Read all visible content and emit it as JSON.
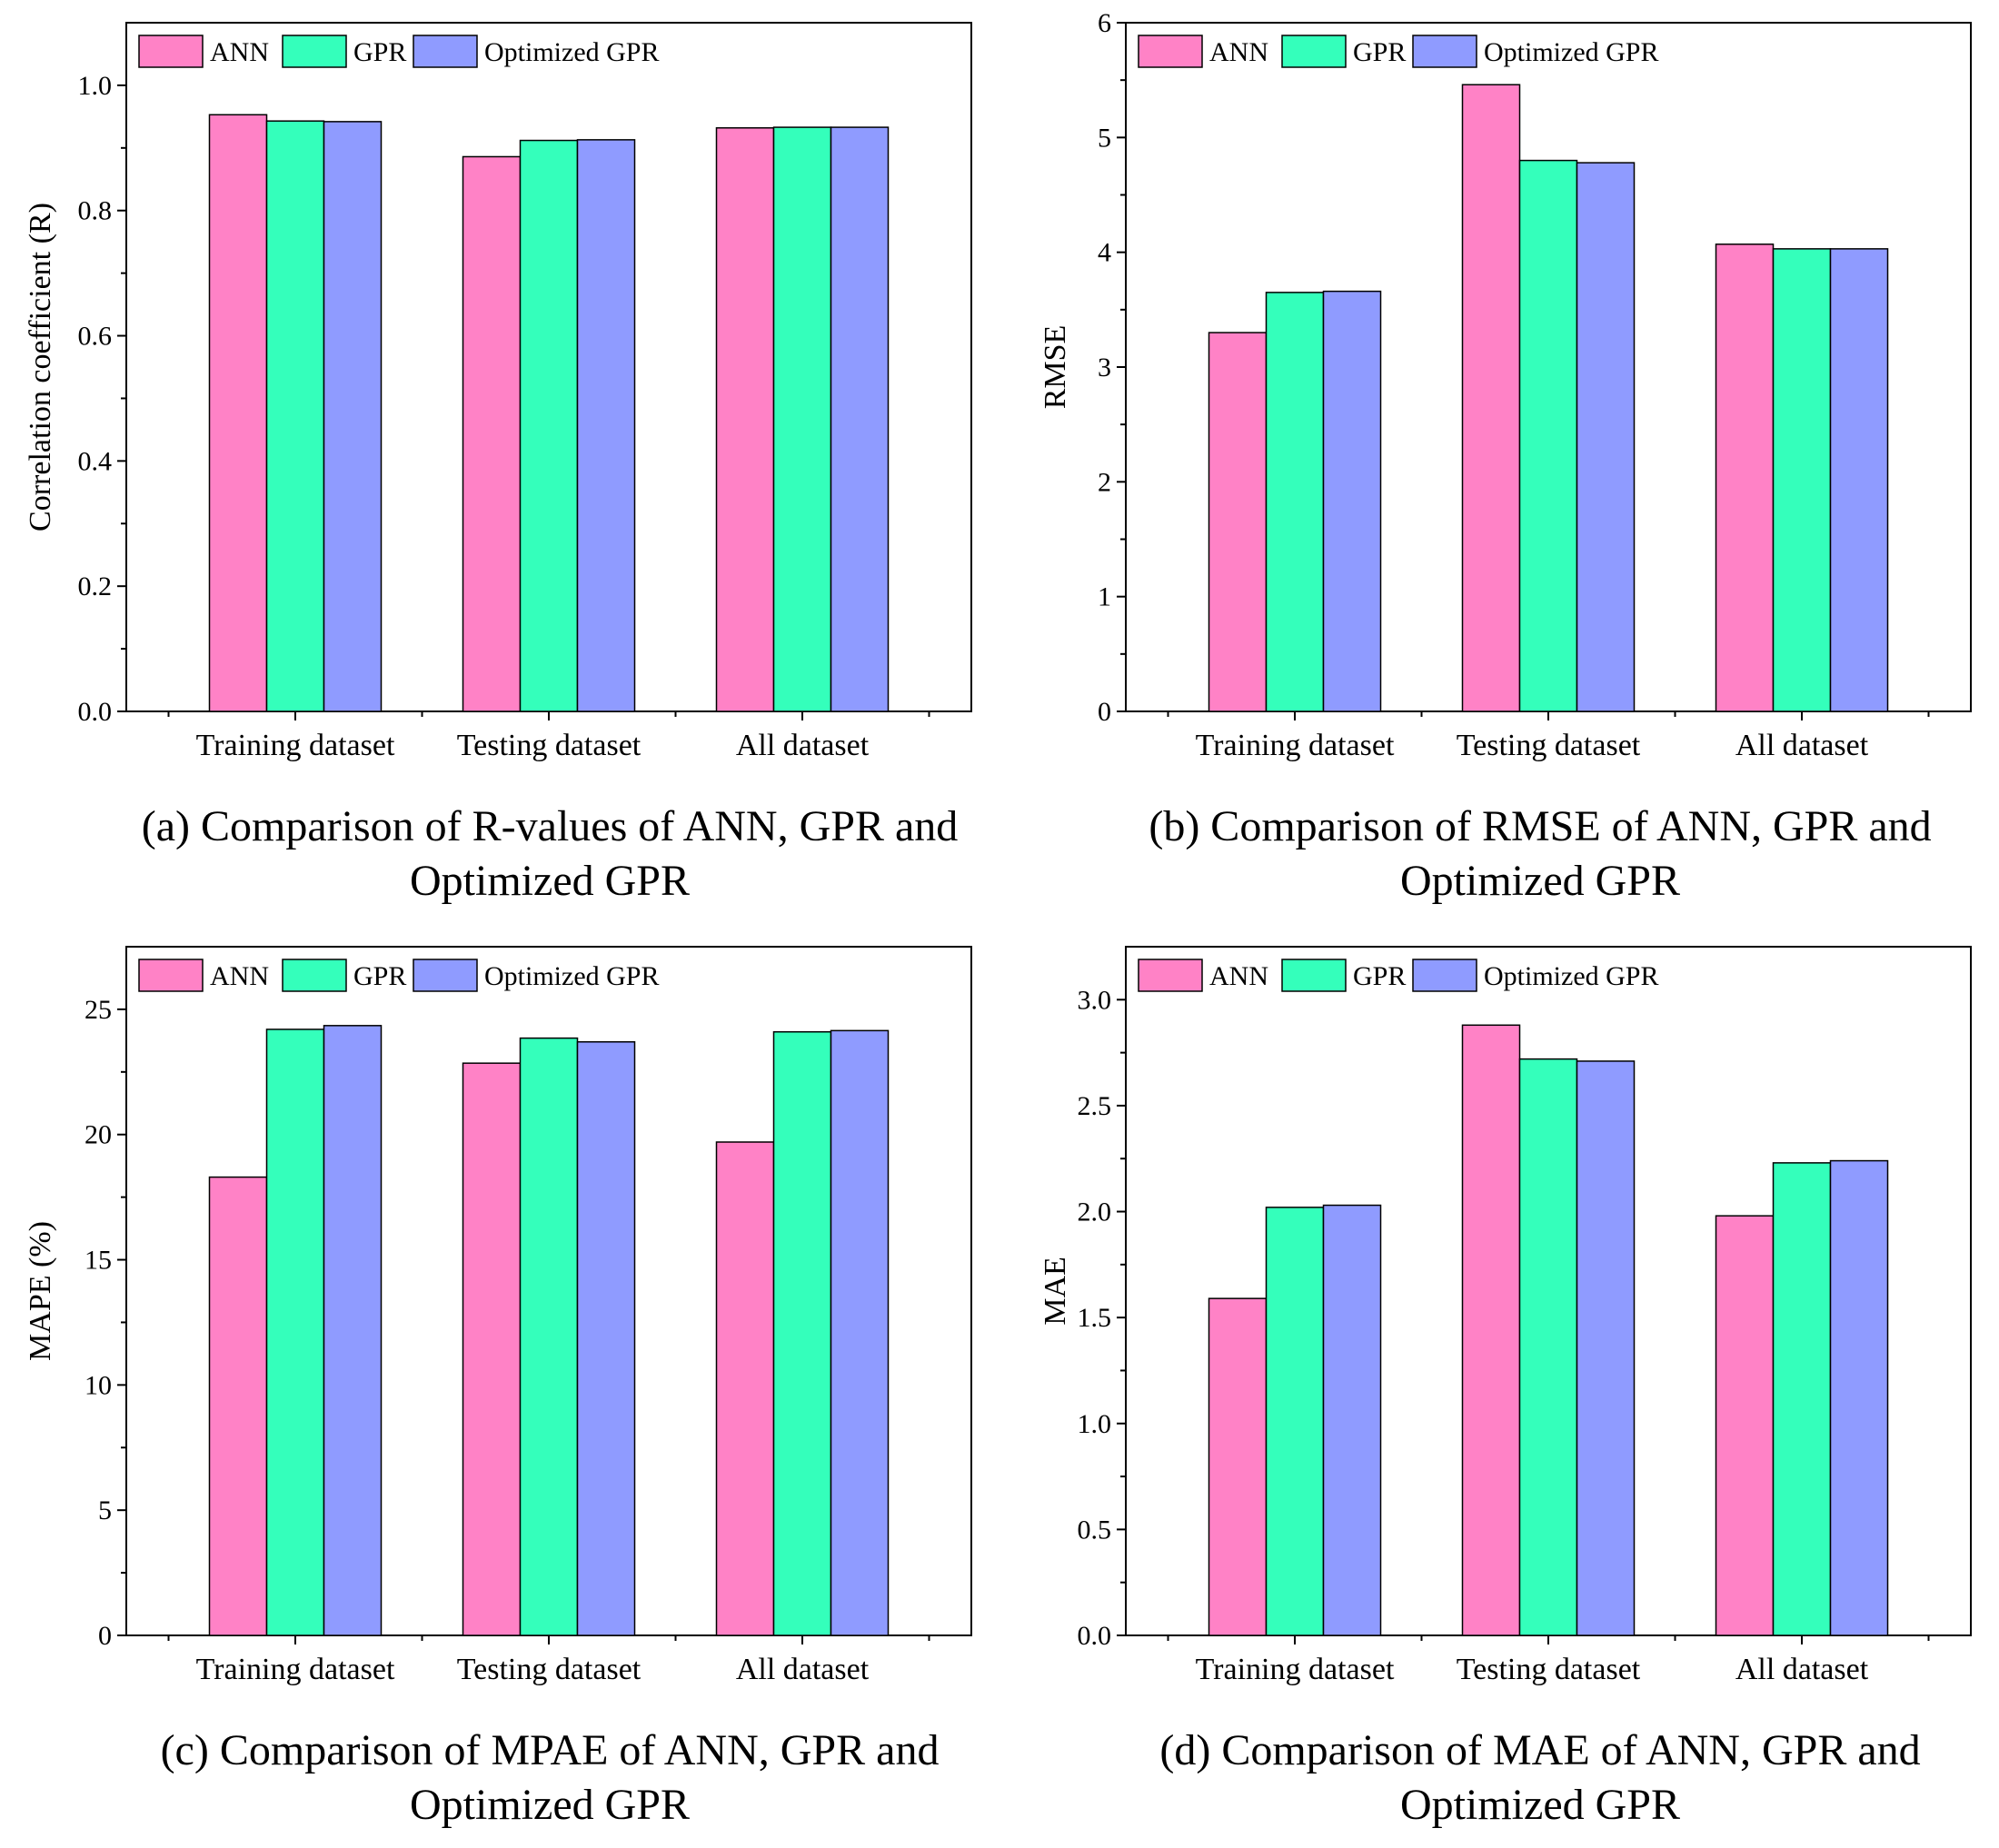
{
  "legend": [
    "ANN",
    "GPR",
    "Optimized GPR"
  ],
  "colors": {
    "ANN": "#ff82c6",
    "GPR": "#34ffbb",
    "Optimized GPR": "#8f9bff",
    "axis": "#000000"
  },
  "chart_data": [
    {
      "type": "bar",
      "panel": "a",
      "categories": [
        "Training dataset",
        "Testing dataset",
        "All dataset"
      ],
      "series": [
        {
          "name": "ANN",
          "values": [
            0.953,
            0.886,
            0.932
          ]
        },
        {
          "name": "GPR",
          "values": [
            0.943,
            0.912,
            0.933
          ]
        },
        {
          "name": "Optimized GPR",
          "values": [
            0.942,
            0.913,
            0.933
          ]
        }
      ],
      "ylabel": "Correlation coefficient (R)",
      "ylim": [
        0,
        1.1
      ],
      "yticks": [
        0.0,
        0.2,
        0.4,
        0.6,
        0.8,
        1.0
      ],
      "ytick_labels": [
        "0.0",
        "0.2",
        "0.4",
        "0.6",
        "0.8",
        "1.0"
      ],
      "caption": "(a) Comparison of R-values of ANN, GPR and Optimized GPR",
      "legend_position": "top-left"
    },
    {
      "type": "bar",
      "panel": "b",
      "categories": [
        "Training dataset",
        "Testing dataset",
        "All dataset"
      ],
      "series": [
        {
          "name": "ANN",
          "values": [
            3.3,
            5.46,
            4.07
          ]
        },
        {
          "name": "GPR",
          "values": [
            3.65,
            4.8,
            4.03
          ]
        },
        {
          "name": "Optimized GPR",
          "values": [
            3.66,
            4.78,
            4.03
          ]
        }
      ],
      "ylabel": "RMSE",
      "ylim": [
        0,
        6
      ],
      "yticks": [
        0,
        1,
        2,
        3,
        4,
        5,
        6
      ],
      "ytick_labels": [
        "0",
        "1",
        "2",
        "3",
        "4",
        "5",
        "6"
      ],
      "caption": "(b) Comparison of RMSE of ANN, GPR and Optimized GPR",
      "legend_position": "top-left"
    },
    {
      "type": "bar",
      "panel": "c",
      "categories": [
        "Training dataset",
        "Testing dataset",
        "All dataset"
      ],
      "series": [
        {
          "name": "ANN",
          "values": [
            18.3,
            22.85,
            19.7
          ]
        },
        {
          "name": "GPR",
          "values": [
            24.2,
            23.85,
            24.1
          ]
        },
        {
          "name": "Optimized GPR",
          "values": [
            24.35,
            23.7,
            24.15
          ]
        }
      ],
      "ylabel": "MAPE (%)",
      "ylim": [
        0,
        27.5
      ],
      "yticks": [
        0,
        5,
        10,
        15,
        20,
        25
      ],
      "ytick_labels": [
        "0",
        "5",
        "10",
        "15",
        "20",
        "25"
      ],
      "caption": "(c) Comparison of MPAE of ANN, GPR and Optimized GPR",
      "legend_position": "top-left"
    },
    {
      "type": "bar",
      "panel": "d",
      "categories": [
        "Training dataset",
        "Testing dataset",
        "All dataset"
      ],
      "series": [
        {
          "name": "ANN",
          "values": [
            1.59,
            2.88,
            1.98
          ]
        },
        {
          "name": "GPR",
          "values": [
            2.02,
            2.72,
            2.23
          ]
        },
        {
          "name": "Optimized GPR",
          "values": [
            2.03,
            2.71,
            2.24
          ]
        }
      ],
      "ylabel": "MAE",
      "ylim": [
        0,
        3.25
      ],
      "yticks": [
        0.0,
        0.5,
        1.0,
        1.5,
        2.0,
        2.5,
        3.0
      ],
      "ytick_labels": [
        "0.0",
        "0.5",
        "1.0",
        "1.5",
        "2.0",
        "2.5",
        "3.0"
      ],
      "caption": "(d) Comparison of MAE of ANN, GPR and Optimized GPR",
      "legend_position": "top-left"
    }
  ]
}
